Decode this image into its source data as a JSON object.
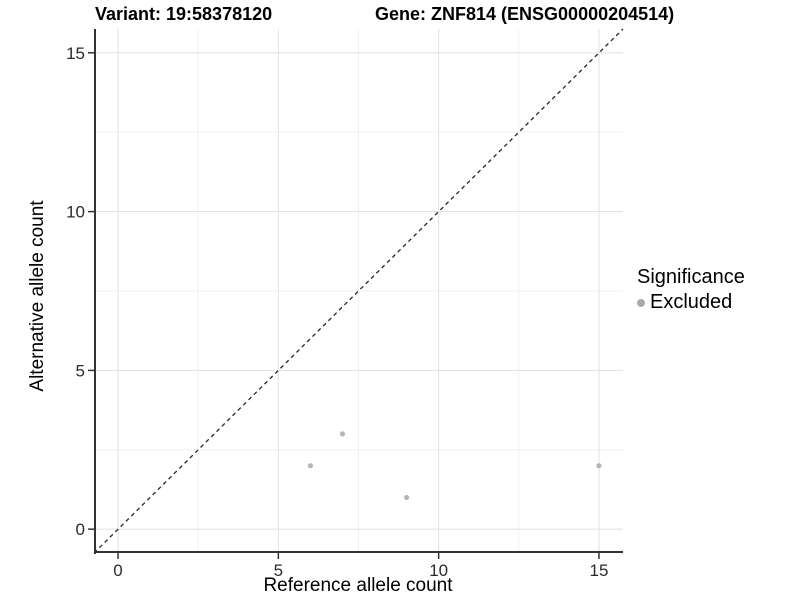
{
  "chart_data": {
    "type": "scatter",
    "titles": {
      "left": "Variant: 19:58378120",
      "right": "Gene: ZNF814 (ENSG00000204514)"
    },
    "xlabel": "Reference allele count",
    "ylabel": "Alternative allele count",
    "xlim": [
      -0.75,
      15.75
    ],
    "ylim": [
      -0.75,
      15.75
    ],
    "x_ticks": [
      0,
      5,
      10,
      15
    ],
    "y_ticks": [
      0,
      5,
      10,
      15
    ],
    "x_minor_ticks": [
      2.5,
      7.5,
      12.5
    ],
    "y_minor_ticks": [
      2.5,
      7.5,
      12.5
    ],
    "grid": true,
    "series": [
      {
        "name": "Excluded",
        "color": "#b5b5b5",
        "points": [
          {
            "x": 6,
            "y": 2
          },
          {
            "x": 7,
            "y": 3
          },
          {
            "x": 9,
            "y": 1
          },
          {
            "x": 15,
            "y": 2
          }
        ]
      }
    ],
    "abline": {
      "slope": 1,
      "intercept": 0,
      "style": "dashed",
      "color": "#262626"
    },
    "legend": {
      "title": "Significance",
      "position": "right",
      "entries": [
        {
          "label": "Excluded",
          "color": "#a9a9a9"
        }
      ]
    },
    "colors": {
      "grid_major": "#e3e3e3",
      "grid_minor": "#f0f0f0",
      "axis_line": "#333333",
      "tick_mark": "#333333",
      "tick_label": "#2b2b2b"
    }
  }
}
